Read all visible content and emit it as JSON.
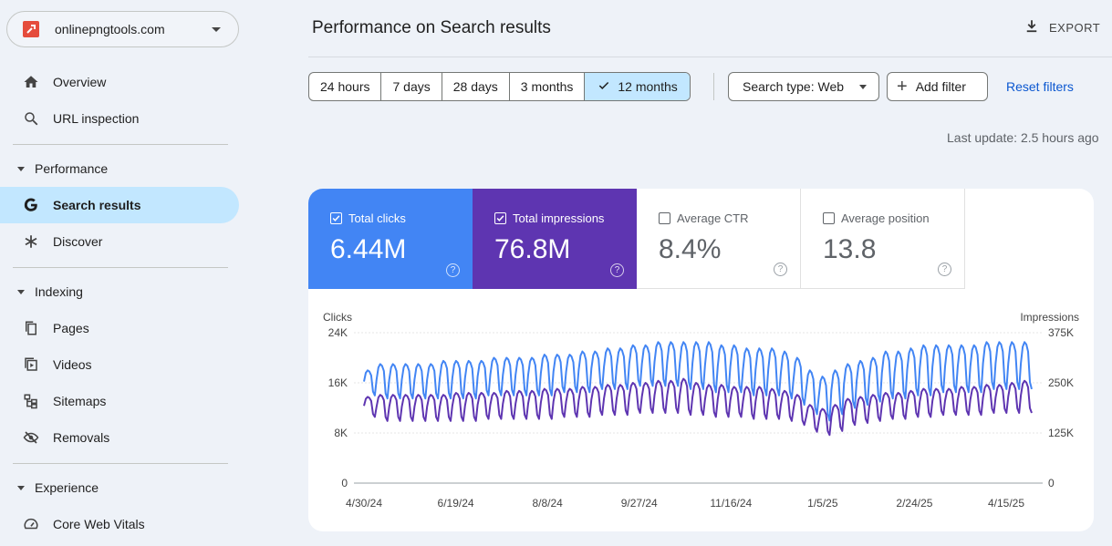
{
  "property": {
    "name": "onlinepngtools.com"
  },
  "nav": {
    "overview": "Overview",
    "url_inspection": "URL inspection",
    "performance_section": "Performance",
    "search_results": "Search results",
    "discover": "Discover",
    "indexing_section": "Indexing",
    "pages": "Pages",
    "videos": "Videos",
    "sitemaps": "Sitemaps",
    "removals": "Removals",
    "experience_section": "Experience",
    "core_web_vitals": "Core Web Vitals"
  },
  "header": {
    "title": "Performance on Search results",
    "export": "EXPORT"
  },
  "filters": {
    "ranges": [
      "24 hours",
      "7 days",
      "28 days",
      "3 months",
      "12 months"
    ],
    "selected_range": "12 months",
    "search_type": "Search type: Web",
    "add_filter": "Add filter",
    "reset": "Reset filters",
    "last_update": "Last update: 2.5 hours ago"
  },
  "metrics": {
    "clicks": {
      "label": "Total clicks",
      "value": "6.44M",
      "checked": true,
      "color": "#4285f4"
    },
    "impressions": {
      "label": "Total impressions",
      "value": "76.8M",
      "checked": true,
      "color": "#5e35b1"
    },
    "ctr": {
      "label": "Average CTR",
      "value": "8.4%",
      "checked": false
    },
    "position": {
      "label": "Average position",
      "value": "13.8",
      "checked": false
    }
  },
  "chart_data": {
    "type": "line",
    "left_axis_label": "Clicks",
    "right_axis_label": "Impressions",
    "left_ticks": [
      "24K",
      "16K",
      "8K",
      "0"
    ],
    "right_ticks": [
      "375K",
      "250K",
      "125K",
      "0"
    ],
    "left_range": [
      0,
      24000
    ],
    "right_range": [
      0,
      375000
    ],
    "x_ticks": [
      "4/30/24",
      "6/19/24",
      "8/8/24",
      "9/27/24",
      "11/16/24",
      "1/5/25",
      "2/24/25",
      "4/15/25"
    ],
    "series": [
      {
        "name": "Total clicks",
        "axis": "left",
        "color": "#4285f4",
        "weekly_highs": [
          18000,
          19000,
          19000,
          19000,
          19000,
          19000,
          19500,
          19500,
          19500,
          19500,
          20000,
          20000,
          20000,
          20000,
          20500,
          20500,
          20500,
          21000,
          21000,
          21500,
          21500,
          22000,
          22000,
          22500,
          22500,
          22500,
          22500,
          22500,
          22000,
          22000,
          21500,
          21500,
          21500,
          21000,
          20000,
          18000,
          17000,
          18000,
          19000,
          19500,
          20000,
          21000,
          21000,
          21500,
          22000,
          22000,
          22000,
          22000,
          22000,
          22500,
          22500,
          22500,
          22500
        ],
        "weekly_lows": [
          14000,
          13500,
          13500,
          13500,
          13500,
          13500,
          13500,
          13500,
          13500,
          14000,
          14000,
          14000,
          14000,
          14000,
          14000,
          14500,
          14500,
          14500,
          15000,
          15000,
          15000,
          15500,
          15500,
          15500,
          15500,
          15000,
          15000,
          14500,
          14500,
          14500,
          14000,
          14000,
          14000,
          13500,
          12500,
          11000,
          10000,
          11000,
          12000,
          12500,
          13000,
          13500,
          13500,
          14000,
          14000,
          14500,
          14500,
          14500,
          14500,
          15000,
          15000,
          15000,
          15000
        ]
      },
      {
        "name": "Total impressions",
        "axis": "right",
        "color": "#5e35b1",
        "weekly_highs": [
          215000,
          220000,
          220000,
          220000,
          220000,
          220000,
          220000,
          225000,
          225000,
          225000,
          225000,
          230000,
          230000,
          230000,
          235000,
          235000,
          235000,
          240000,
          240000,
          245000,
          245000,
          250000,
          250000,
          255000,
          255000,
          260000,
          250000,
          245000,
          245000,
          240000,
          240000,
          240000,
          235000,
          230000,
          220000,
          195000,
          185000,
          195000,
          210000,
          215000,
          220000,
          225000,
          225000,
          230000,
          235000,
          235000,
          235000,
          240000,
          240000,
          245000,
          245000,
          250000,
          255000
        ],
        "weekly_lows": [
          165000,
          155000,
          155000,
          155000,
          155000,
          155000,
          155000,
          155000,
          155000,
          160000,
          160000,
          160000,
          160000,
          160000,
          160000,
          165000,
          165000,
          165000,
          170000,
          170000,
          170000,
          175000,
          175000,
          175000,
          175000,
          170000,
          170000,
          165000,
          165000,
          165000,
          160000,
          160000,
          160000,
          155000,
          145000,
          128000,
          120000,
          130000,
          145000,
          150000,
          155000,
          160000,
          160000,
          165000,
          165000,
          170000,
          170000,
          170000,
          170000,
          175000,
          175000,
          175000,
          175000
        ]
      }
    ]
  }
}
